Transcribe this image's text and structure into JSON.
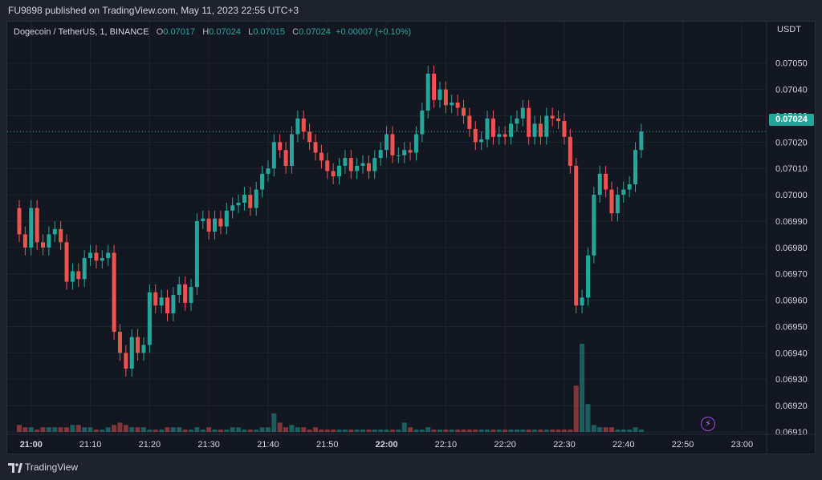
{
  "header": {
    "published": "FU9898 published on TradingView.com, May 11, 2023 22:55 UTC+3"
  },
  "legend": {
    "symbol": "Dogecoin / TetherUS, 1, BINANCE",
    "o_label": "O",
    "o_value": "0.07017",
    "h_label": "H",
    "h_value": "0.07024",
    "l_label": "L",
    "l_value": "0.07015",
    "c_label": "C",
    "c_value": "0.07024",
    "change": "+0.00007 (+0.10%)"
  },
  "footer": {
    "brand": "TradingView"
  },
  "colors": {
    "up": "#26a69a",
    "down": "#ef5350",
    "background": "#131722",
    "grid": "#1f2330"
  },
  "icons": {
    "brand": "tradingview-logo-icon",
    "alert": "lightning-icon"
  },
  "chart_data": {
    "type": "candlestick",
    "unit": "USDT",
    "last_price": "0.07024",
    "ylim": [
      0.0691,
      0.07056
    ],
    "y_ticks": [
      "0.07050",
      "0.07040",
      "0.07030",
      "0.07020",
      "0.07010",
      "0.07000",
      "0.06990",
      "0.06980",
      "0.06970",
      "0.06960",
      "0.06950",
      "0.06940",
      "0.06930",
      "0.06920",
      "0.06910"
    ],
    "x_ticks": [
      {
        "label": "21:00",
        "minute": 0,
        "bold": true
      },
      {
        "label": "21:10",
        "minute": 10,
        "bold": false
      },
      {
        "label": "21:20",
        "minute": 20,
        "bold": false
      },
      {
        "label": "21:30",
        "minute": 30,
        "bold": false
      },
      {
        "label": "21:40",
        "minute": 40,
        "bold": false
      },
      {
        "label": "21:50",
        "minute": 50,
        "bold": false
      },
      {
        "label": "22:00",
        "minute": 60,
        "bold": true
      },
      {
        "label": "22:10",
        "minute": 70,
        "bold": false
      },
      {
        "label": "22:20",
        "minute": 80,
        "bold": false
      },
      {
        "label": "22:30",
        "minute": 90,
        "bold": false
      },
      {
        "label": "22:40",
        "minute": 100,
        "bold": false
      },
      {
        "label": "22:50",
        "minute": 110,
        "bold": false
      },
      {
        "label": "23:00",
        "minute": 120,
        "bold": false
      }
    ],
    "start_minute": -2,
    "closes": [
      0.06985,
      0.0698,
      0.06995,
      0.06982,
      0.0698,
      0.06985,
      0.06987,
      0.06982,
      0.06967,
      0.06971,
      0.06968,
      0.06976,
      0.06978,
      0.06975,
      0.06976,
      0.06978,
      0.06948,
      0.0694,
      0.06934,
      0.06946,
      0.0694,
      0.06943,
      0.06963,
      0.06958,
      0.06961,
      0.06955,
      0.06962,
      0.06966,
      0.06959,
      0.06965,
      0.0699,
      0.06991,
      0.06986,
      0.06991,
      0.06988,
      0.06994,
      0.06996,
      0.06997,
      0.07,
      0.06995,
      0.07002,
      0.07008,
      0.0701,
      0.0702,
      0.07017,
      0.07011,
      0.07023,
      0.07029,
      0.07024,
      0.0702,
      0.07016,
      0.07013,
      0.07009,
      0.07007,
      0.07011,
      0.07014,
      0.07009,
      0.07011,
      0.07012,
      0.07009,
      0.07014,
      0.07017,
      0.07023,
      0.07015,
      0.07015,
      0.07017,
      0.07016,
      0.07023,
      0.07032,
      0.07046,
      0.07036,
      0.0704,
      0.07034,
      0.07035,
      0.07033,
      0.0703,
      0.07025,
      0.0702,
      0.07021,
      0.07029,
      0.07022,
      0.07023,
      0.07022,
      0.07027,
      0.07029,
      0.07033,
      0.07022,
      0.07027,
      0.07022,
      0.0703,
      0.07029,
      0.07028,
      0.07022,
      0.07011,
      0.06958,
      0.06961,
      0.06977,
      0.07,
      0.07008,
      0.07002,
      0.06993,
      0.07,
      0.07002,
      0.07004,
      0.07017,
      0.07024
    ],
    "volumes": [
      3,
      2,
      2,
      1,
      2,
      2,
      2,
      2,
      2,
      3,
      3,
      2,
      2,
      1,
      1,
      2,
      3,
      4,
      3,
      2,
      2,
      2,
      1,
      1,
      1,
      2,
      2,
      2,
      1,
      1,
      2,
      1,
      2,
      1,
      1,
      1,
      2,
      2,
      1,
      1,
      1,
      2,
      2,
      8,
      4,
      2,
      3,
      2,
      2,
      1,
      2,
      1,
      1,
      1,
      1,
      1,
      1,
      1,
      1,
      1,
      1,
      1,
      1,
      1,
      1,
      4,
      2,
      1,
      1,
      2,
      1,
      1,
      1,
      1,
      1,
      1,
      1,
      1,
      1,
      1,
      1,
      1,
      1,
      1,
      1,
      1,
      1,
      1,
      1,
      1,
      1,
      1,
      1,
      1,
      20,
      38,
      12,
      3,
      2,
      2,
      2,
      1,
      1,
      1,
      2,
      1
    ]
  }
}
